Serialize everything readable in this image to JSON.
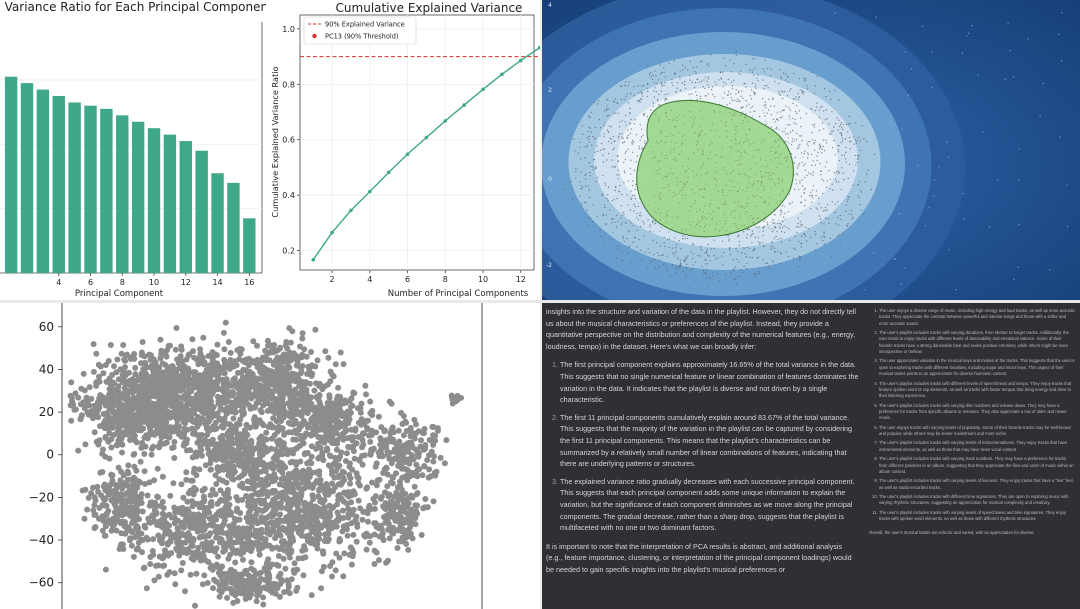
{
  "chart_data": [
    {
      "type": "bar",
      "title": "n Variance Ratio for Each Principal Component",
      "xlabel": "Principal Component",
      "ylabel": "",
      "categories": [
        1,
        2,
        3,
        4,
        5,
        6,
        7,
        8,
        9,
        10,
        11,
        12,
        13,
        14,
        15,
        16
      ],
      "values": [
        0.061,
        0.059,
        0.057,
        0.055,
        0.053,
        0.052,
        0.051,
        0.049,
        0.047,
        0.045,
        0.043,
        0.041,
        0.038,
        0.031,
        0.028,
        0.017
      ],
      "xticks": [
        "4",
        "6",
        "8",
        "10",
        "12",
        "14",
        "16"
      ],
      "xlim": [
        0.3,
        16.8
      ],
      "ylim": [
        0,
        0.078
      ],
      "bar_color": "#3fa88a"
    },
    {
      "type": "line",
      "title": "Cumulative Explained Variance",
      "xlabel": "Number of Principal Components",
      "ylabel": "Cumulative Explained Variance Ratio",
      "x": [
        1,
        2,
        3,
        4,
        5,
        6,
        7,
        8,
        9,
        10,
        11,
        12,
        13
      ],
      "y": [
        0.167,
        0.265,
        0.345,
        0.413,
        0.482,
        0.548,
        0.608,
        0.668,
        0.725,
        0.782,
        0.836,
        0.886,
        0.932
      ],
      "xticks": [
        "2",
        "4",
        "6",
        "8",
        "10",
        "12"
      ],
      "yticks": [
        "0.2",
        "0.4",
        "0.6",
        "0.8",
        "1.0"
      ],
      "xlim": [
        0.3,
        12.7
      ],
      "ylim": [
        0.13,
        1.05
      ],
      "threshold": 0.9,
      "legend": [
        "90% Explained Variance",
        "PC13 (90% Threshold)"
      ],
      "line_color": "#3fa88a",
      "threshold_color": "#d9332a"
    },
    {
      "type": "contour",
      "yticks": [
        "4",
        "2",
        "0",
        "-2"
      ],
      "levels": [
        "#2d5d9c",
        "#3f75b4",
        "#6aa0cf",
        "#a7c9e2",
        "#d2e3f0",
        "#edf3f8"
      ],
      "center_fill": "#9fd88f"
    },
    {
      "type": "scatter",
      "yticks": [
        "60",
        "40",
        "20",
        "0",
        "−20",
        "−40",
        "−60"
      ],
      "ylim": [
        -70,
        66
      ],
      "point_color": "#8c8c8c"
    }
  ],
  "text_panel": {
    "intro": "insights into the structure and variation of the data in the playlist. However, they do not directly tell us about the musical characteristics or preferences of the playlist. Instead, they provide a quantitative perspective on the distribution and complexity of the numerical features (e.g., energy, loudness, tempo) in the dataset. Here's what we can broadly infer:",
    "items": [
      "The first principal component explains approximately 16.65% of the total variance in the data. This suggests that no single numerical feature or linear combination of features dominates the variation in the data. It indicates that the playlist is diverse and not driven by a single characteristic.",
      "The first 11 principal components cumulatively explain around 83.67% of the total variance. This suggests that the majority of the variation in the playlist can be captured by considering the first 11 principal components. This means that the playlist's characteristics can be summarized by a relatively small number of linear combinations of features, indicating that there are underlying patterns or structures.",
      "The explained variance ratio gradually decreases with each successive principal component. This suggests that each principal component adds some unique information to explain the variation, but the significance of each component diminishes as we move along the principal components. The gradual decrease, rather than a sharp drop, suggests that the playlist is multifaceted with no one or two dominant factors."
    ],
    "outro": "It is important to note that the interpretation of PCA results is abstract, and additional analysis (e.g., feature importance, clustering, or interpretation of the principal component loadings) would be needed to gain specific insights into the playlist's musical preferences or"
  },
  "side_panel": {
    "items": [
      "The user enjoys a diverse range of music, including high energy and loud tracks, as well as more acoustic tracks. They appreciate the contrast between powerful and intense songs and those with a softer and more acoustic sound.",
      "The user's playlist includes tracks with varying durations, from shorter to longer tracks. Additionally, the user tends to enjoy tracks with different levels of danceability and emotional valence. Some of their favorite tracks have a strong danceable beat and evoke positive emotions, while others might be more introspective or mellow.",
      "The user appreciates variation in the musical keys and modes of the tracks. This suggests that the user is open to exploring tracks with different tonalities, including major and minor keys. This aspect of their musical tastes points to an appreciation for diverse harmonic content.",
      "The user's playlist includes tracks with different levels of speechiness and tempo. They enjoy tracks that feature spoken word or rap elements, as well as tracks with faster tempos that bring energy and drive to their listening experience.",
      "The user's playlist includes tracks with varying disc numbers and release dates. They may have a preference for tracks from specific albums or releases. They also appreciate a mix of older and newer music.",
      "The user enjoys tracks with varying levels of popularity. Some of their favorite tracks may be well-known and popular, while others may be lesser mainstream and more niche.",
      "The user's playlist includes tracks with varying levels of instrumentalness. They enjoy tracks that have instrumental elements, as well as those that may have more vocal content.",
      "The user's playlist includes tracks with varying track numbers. They may have a preference for tracks from different positions in an album, suggesting that they appreciate the flow and order of music within an album context.",
      "The user's playlist includes tracks with varying levels of liveness. They enjoy tracks that have a \"live\" feel, as well as studio-recorded tracks.",
      "The user's playlist includes tracks with different time signatures. They are open to exploring music with varying rhythmic structures, suggesting an appreciation for musical complexity and creativity.",
      "The user's playlist includes tracks with varying levels of speechiness and time signatures. They enjoy tracks with spoken word elements, as well as those with different rhythmic structures."
    ],
    "outro": "Overall, the user's musical tastes are eclectic and varied, with an appreciation for diverse"
  }
}
